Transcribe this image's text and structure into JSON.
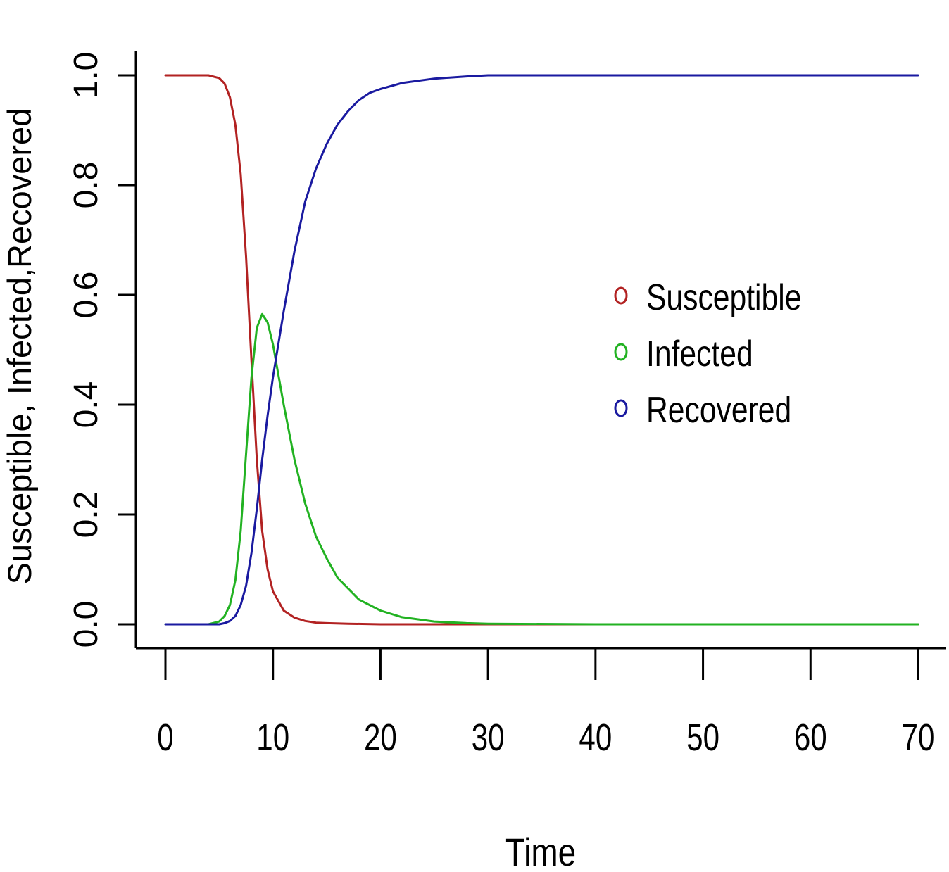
{
  "chart_data": {
    "type": "line",
    "title": "",
    "xlabel": "Time",
    "ylabel": "Susceptible, Infected,Recovered",
    "xlim": [
      0,
      70
    ],
    "ylim": [
      0,
      1
    ],
    "xticks": [
      0,
      10,
      20,
      30,
      40,
      50,
      60,
      70
    ],
    "xtick_labels": [
      "0",
      "10",
      "20",
      "30",
      "40",
      "50",
      "60",
      "70"
    ],
    "yticks": [
      0,
      0.2,
      0.4,
      0.6,
      0.8,
      1.0
    ],
    "ytick_labels": [
      "0.0",
      "0.2",
      "0.4",
      "0.6",
      "0.8",
      "1.0"
    ],
    "grid": false,
    "legend": {
      "position": "center-right",
      "marker": "circle"
    },
    "series": [
      {
        "name": "Susceptible",
        "color": "#b22222",
        "x": [
          0,
          2,
          4,
          5,
          5.5,
          6,
          6.5,
          7,
          7.5,
          8,
          8.5,
          9,
          9.5,
          10,
          11,
          12,
          13,
          14,
          15,
          17,
          20,
          25,
          30,
          40,
          50,
          60,
          70
        ],
        "y": [
          1.0,
          1.0,
          1.0,
          0.995,
          0.985,
          0.96,
          0.91,
          0.82,
          0.67,
          0.48,
          0.3,
          0.17,
          0.1,
          0.06,
          0.025,
          0.012,
          0.006,
          0.003,
          0.002,
          0.001,
          0.0,
          0.0,
          0.0,
          0.0,
          0.0,
          0.0,
          0.0
        ]
      },
      {
        "name": "Infected",
        "color": "#22b222",
        "x": [
          0,
          2,
          4,
          5,
          5.5,
          6,
          6.5,
          7,
          7.5,
          8,
          8.5,
          9,
          9.5,
          10,
          11,
          12,
          13,
          14,
          15,
          16,
          17,
          18,
          20,
          22,
          25,
          28,
          30,
          40,
          50,
          60,
          70
        ],
        "y": [
          0.0,
          0.0,
          0.0,
          0.005,
          0.015,
          0.035,
          0.08,
          0.17,
          0.31,
          0.45,
          0.54,
          0.565,
          0.55,
          0.51,
          0.4,
          0.3,
          0.22,
          0.16,
          0.12,
          0.085,
          0.065,
          0.045,
          0.025,
          0.013,
          0.005,
          0.002,
          0.001,
          0.0,
          0.0,
          0.0,
          0.0
        ]
      },
      {
        "name": "Recovered",
        "color": "#1a1aa0",
        "x": [
          0,
          2,
          4,
          5,
          5.5,
          6,
          6.5,
          7,
          7.5,
          8,
          8.5,
          9,
          9.5,
          10,
          11,
          12,
          13,
          14,
          15,
          16,
          17,
          18,
          19,
          20,
          22,
          25,
          28,
          30,
          40,
          50,
          60,
          70
        ],
        "y": [
          0.0,
          0.0,
          0.0,
          0.0,
          0.002,
          0.006,
          0.015,
          0.035,
          0.07,
          0.13,
          0.21,
          0.3,
          0.38,
          0.45,
          0.57,
          0.68,
          0.77,
          0.83,
          0.875,
          0.91,
          0.935,
          0.955,
          0.968,
          0.975,
          0.986,
          0.994,
          0.998,
          1.0,
          1.0,
          1.0,
          1.0,
          1.0
        ]
      }
    ]
  }
}
